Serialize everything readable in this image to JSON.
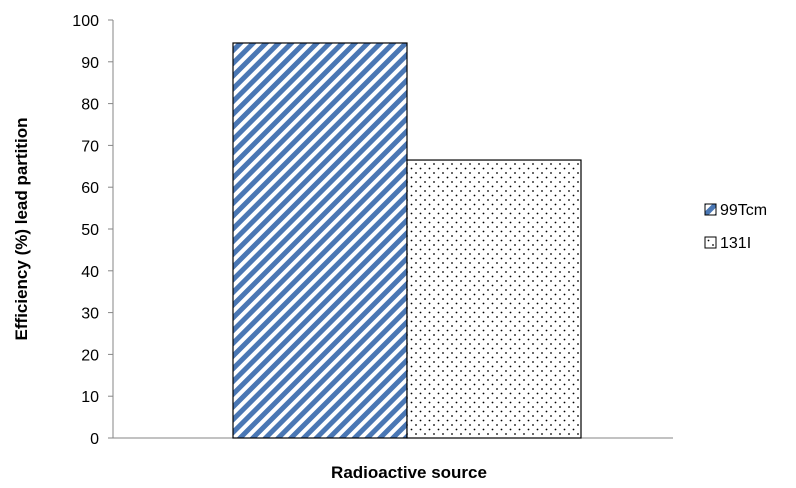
{
  "chart_data": {
    "type": "bar",
    "title": "",
    "xlabel": "Radioactive source",
    "ylabel": "Efficiency  (%) lead partition",
    "ylim": [
      0,
      100
    ],
    "yticks": [
      0,
      10,
      20,
      30,
      40,
      50,
      60,
      70,
      80,
      90,
      100
    ],
    "grid": false,
    "legend_position": "right",
    "series": [
      {
        "name": "99Tcm",
        "value": 94.5,
        "pattern": "diagonal-hatch",
        "color": "#4a77b4"
      },
      {
        "name": "131I",
        "value": 66.5,
        "pattern": "dots",
        "color": "#000000"
      }
    ]
  }
}
